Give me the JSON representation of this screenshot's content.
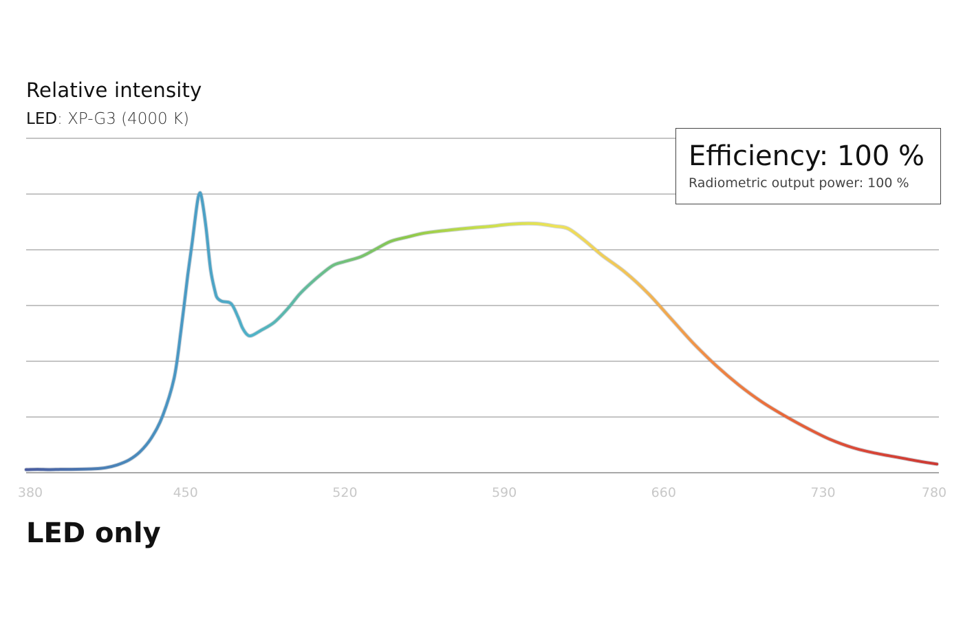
{
  "chart_data": {
    "type": "line",
    "title": "Relative intensity",
    "subtitle": {
      "key": "LED",
      "value": "XP-G3 (4000 K)"
    },
    "xlabel": "",
    "ylabel": "",
    "xlim": [
      380,
      780
    ],
    "ylim": [
      0,
      1.2
    ],
    "xticks": [
      "380",
      "450",
      "520",
      "590",
      "660",
      "730",
      "780"
    ],
    "grid": true,
    "legend": "none",
    "series": [
      {
        "points": [
          [
            380,
            0.011
          ],
          [
            385,
            0.012
          ],
          [
            390,
            0.011
          ],
          [
            395,
            0.012
          ],
          [
            400,
            0.012
          ],
          [
            410,
            0.014
          ],
          [
            415,
            0.018
          ],
          [
            420,
            0.028
          ],
          [
            425,
            0.045
          ],
          [
            430,
            0.075
          ],
          [
            435,
            0.125
          ],
          [
            440,
            0.205
          ],
          [
            445,
            0.34
          ],
          [
            448,
            0.51
          ],
          [
            451,
            0.71
          ],
          [
            453,
            0.83
          ],
          [
            455,
            0.96
          ],
          [
            456,
            1.0
          ],
          [
            457,
            0.99
          ],
          [
            459,
            0.88
          ],
          [
            461,
            0.73
          ],
          [
            463,
            0.65
          ],
          [
            464,
            0.627
          ],
          [
            466,
            0.615
          ],
          [
            470,
            0.607
          ],
          [
            473,
            0.56
          ],
          [
            475,
            0.52
          ],
          [
            477,
            0.496
          ],
          [
            479,
            0.492
          ],
          [
            483,
            0.51
          ],
          [
            489,
            0.54
          ],
          [
            495,
            0.59
          ],
          [
            500,
            0.64
          ],
          [
            505,
            0.68
          ],
          [
            510,
            0.715
          ],
          [
            515,
            0.745
          ],
          [
            520,
            0.758
          ],
          [
            527,
            0.775
          ],
          [
            533,
            0.8
          ],
          [
            540,
            0.83
          ],
          [
            547,
            0.845
          ],
          [
            555,
            0.86
          ],
          [
            565,
            0.87
          ],
          [
            575,
            0.878
          ],
          [
            585,
            0.885
          ],
          [
            590,
            0.89
          ],
          [
            598,
            0.894
          ],
          [
            605,
            0.893
          ],
          [
            612,
            0.885
          ],
          [
            618,
            0.876
          ],
          [
            625,
            0.835
          ],
          [
            633,
            0.78
          ],
          [
            643,
            0.72
          ],
          [
            653,
            0.645
          ],
          [
            663,
            0.555
          ],
          [
            673,
            0.465
          ],
          [
            683,
            0.385
          ],
          [
            693,
            0.315
          ],
          [
            703,
            0.255
          ],
          [
            713,
            0.205
          ],
          [
            723,
            0.16
          ],
          [
            733,
            0.12
          ],
          [
            743,
            0.09
          ],
          [
            753,
            0.07
          ],
          [
            763,
            0.055
          ],
          [
            773,
            0.04
          ],
          [
            783,
            0.031
          ]
        ]
      }
    ],
    "spectrum_colors": [
      "#4a5ca0",
      "#4a7fb5",
      "#4a98c4",
      "#4fb3c8",
      "#6cbf86",
      "#8cc84b",
      "#c9df4a",
      "#eee35a",
      "#f2c056",
      "#f08a45",
      "#e8683a",
      "#d94737",
      "#cc3a33"
    ]
  },
  "efficiency": {
    "main": "Efficiency: 100 %",
    "sub": "Radiometric output power: 100 %"
  },
  "footer_label": "LED only",
  "colors": {
    "grid": "#8a8a8a",
    "tick_label": "#c8c8c8",
    "text": "#111111"
  }
}
